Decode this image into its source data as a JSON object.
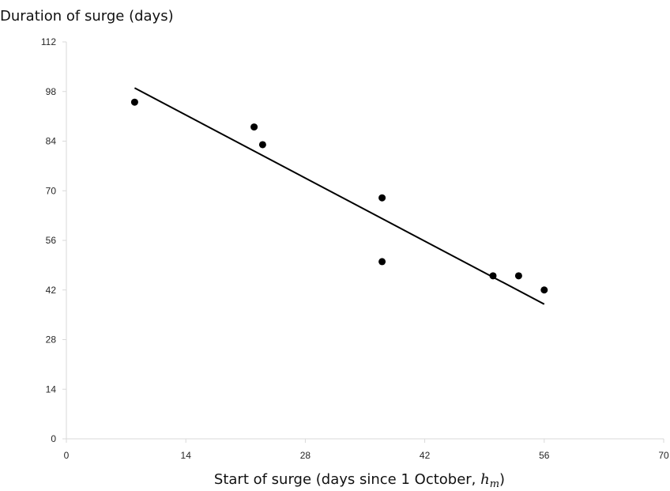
{
  "chart_data": {
    "type": "scatter",
    "ylabel": "Duration of surge (days)",
    "xlabel": {
      "prefix": "Start of surge (days since 1 October, ",
      "math_base": "h",
      "math_sub": "m",
      "suffix": ")"
    },
    "xlim": [
      0,
      70
    ],
    "ylim": [
      0,
      112
    ],
    "xticks": [
      "0",
      "14",
      "28",
      "42",
      "56",
      "70"
    ],
    "yticks": [
      "0",
      "14",
      "28",
      "42",
      "56",
      "70",
      "84",
      "98",
      "112"
    ],
    "grid": false,
    "legend": "none",
    "series": [
      {
        "type": "scatter",
        "marker_color": "#000000",
        "x": [
          8,
          22,
          23,
          37,
          37,
          50,
          53,
          56
        ],
        "y": [
          95,
          88,
          83,
          68,
          50,
          46,
          46,
          42
        ]
      }
    ],
    "trendline": {
      "color": "#000000",
      "x": [
        8,
        56
      ],
      "y": [
        99,
        38
      ]
    }
  }
}
